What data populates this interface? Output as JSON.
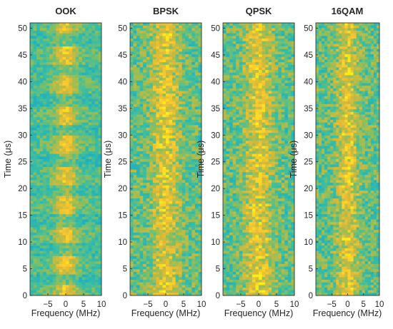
{
  "chart_data": [
    {
      "type": "heatmap",
      "title": "OOK",
      "xlabel": "Frequency (MHz)",
      "ylabel": "Time (μs)",
      "xlim": [
        -10,
        10
      ],
      "ylim": [
        0,
        51
      ],
      "xticks": [
        -5,
        0,
        5,
        10
      ],
      "yticks": [
        0,
        5,
        10,
        15,
        20,
        25,
        30,
        35,
        40,
        45,
        50
      ],
      "colormap": "parula",
      "pattern": "on-off keyed bursts; narrow bright band at 0 MHz with dim horizontal stripes",
      "band_center_mhz": 0,
      "band_width_mhz": 5
    },
    {
      "type": "heatmap",
      "title": "BPSK",
      "xlabel": "Frequency (MHz)",
      "ylabel": "Time (μs)",
      "xlim": [
        -10,
        10
      ],
      "ylim": [
        0,
        51
      ],
      "xticks": [
        -5,
        0,
        5,
        10
      ],
      "yticks": [
        0,
        5,
        10,
        15,
        20,
        25,
        30,
        35,
        40,
        45,
        50
      ],
      "colormap": "parula",
      "pattern": "continuous bright band centered at 0 MHz with noise",
      "band_center_mhz": 0,
      "band_width_mhz": 6
    },
    {
      "type": "heatmap",
      "title": "QPSK",
      "xlabel": "Frequency (MHz)",
      "ylabel": "Time (μs)",
      "xlim": [
        -10,
        10
      ],
      "ylim": [
        0,
        51
      ],
      "xticks": [
        -5,
        0,
        5,
        10
      ],
      "yticks": [
        0,
        5,
        10,
        15,
        20,
        25,
        30,
        35,
        40,
        45,
        50
      ],
      "colormap": "parula",
      "pattern": "continuous bright band centered at 0 MHz with noise",
      "band_center_mhz": 0,
      "band_width_mhz": 6
    },
    {
      "type": "heatmap",
      "title": "16QAM",
      "xlabel": "Frequency (MHz)",
      "ylabel": "Time (μs)",
      "xlim": [
        -10,
        10
      ],
      "ylim": [
        0,
        51
      ],
      "xticks": [
        -5,
        0,
        5,
        10
      ],
      "yticks": [
        0,
        5,
        10,
        15,
        20,
        25,
        30,
        35,
        40,
        45,
        50
      ],
      "colormap": "parula",
      "pattern": "continuous bright band centered at 0 MHz with noise",
      "band_center_mhz": 0,
      "band_width_mhz": 5
    }
  ]
}
